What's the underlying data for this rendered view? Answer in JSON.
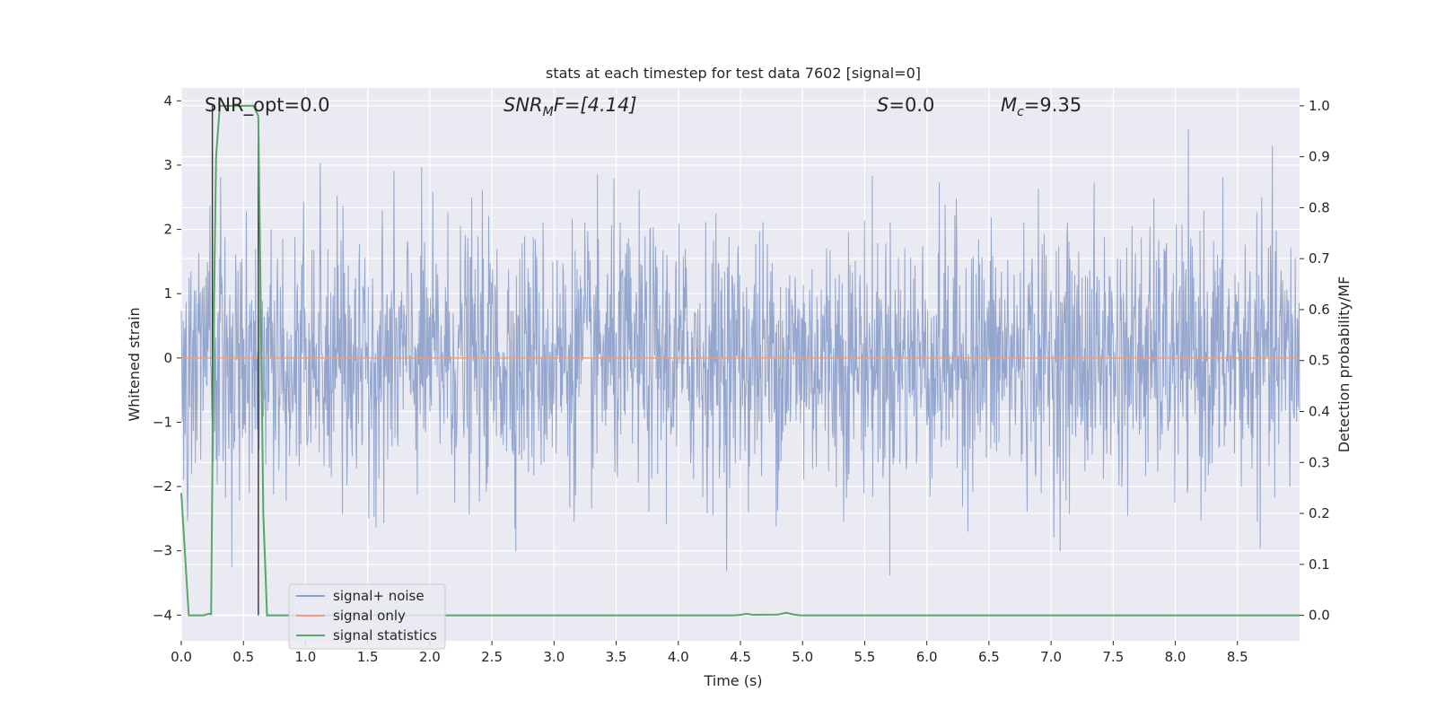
{
  "chart_data": {
    "type": "line",
    "title": "stats at each timestep for test data 7602 [signal=0]",
    "xlabel": "Time (s)",
    "ylabel_left": "Whitened strain",
    "ylabel_right": "Detection probability/MF",
    "xlim": [
      0.0,
      9.0
    ],
    "ylim_left": [
      -4.4,
      4.2
    ],
    "ylim_right": [
      -0.05,
      1.035
    ],
    "xticks": [
      "0.0",
      "0.5",
      "1.0",
      "1.5",
      "2.0",
      "2.5",
      "3.0",
      "3.5",
      "4.0",
      "4.5",
      "5.0",
      "5.5",
      "6.0",
      "6.5",
      "7.0",
      "7.5",
      "8.0",
      "8.5"
    ],
    "yticks_left": [
      "4",
      "3",
      "2",
      "1",
      "0",
      "−1",
      "−2",
      "−3",
      "−4"
    ],
    "yticks_right": [
      "1.0",
      "0.9",
      "0.8",
      "0.7",
      "0.6",
      "0.5",
      "0.4",
      "0.3",
      "0.2",
      "0.1",
      "0.0"
    ],
    "grid": true,
    "legend": {
      "location": "lower-left",
      "entries": [
        {
          "label": "signal+ noise",
          "color": "#8c9fca"
        },
        {
          "label": "signal only",
          "color": "#e6a07f"
        },
        {
          "label": "signal statistics",
          "color": "#55a868"
        }
      ]
    },
    "annotations": {
      "snr_opt": "SNR_opt=0.0",
      "snr_mf_sym": "SNR",
      "snr_mf_sub": "M",
      "snr_mf_rest": "F=[4.14]",
      "s_sym": "S",
      "s_rest": "=0.0",
      "mc_sym": "M",
      "mc_sub": "c",
      "mc_rest": "=9.35"
    },
    "series": [
      {
        "name": "signal+ noise",
        "axis": "left",
        "description_note": "dense whitened noise, std ~1, range approx -3.6 to 3.9",
        "amplitude_envelope": [
          -3.6,
          3.9
        ],
        "n_samples": 2304,
        "seed": 7602
      },
      {
        "name": "signal only",
        "axis": "left",
        "x": [
          0.0,
          9.0
        ],
        "y": [
          0.0,
          0.0
        ]
      },
      {
        "name": "signal statistics",
        "axis": "right",
        "x": [
          0.0,
          0.06,
          0.18,
          0.22,
          0.24,
          0.26,
          0.28,
          0.31,
          0.58,
          0.62,
          0.64,
          0.66,
          0.69,
          0.72,
          4.45,
          4.5,
          4.55,
          4.6,
          4.8,
          4.87,
          4.92,
          4.98,
          9.0
        ],
        "y": [
          0.24,
          0.0,
          0.0,
          0.003,
          0.002,
          0.55,
          0.9,
          1.0,
          1.0,
          0.98,
          0.6,
          0.2,
          0.0,
          0.0,
          0.0,
          0.001,
          0.003,
          0.001,
          0.0015,
          0.005,
          0.002,
          0.0,
          0.0
        ]
      }
    ],
    "markers": [
      {
        "x": 0.25,
        "y_top": 1.0,
        "y_bottom": 0.31,
        "axis": "right"
      },
      {
        "x": 0.62,
        "y_top": 0.97,
        "y_bottom": 0.0,
        "axis": "right"
      }
    ],
    "colors": {
      "plot_bg": "#eaeaf2",
      "grid": "#ffffff",
      "noise": "#8c9fca",
      "signal": "#e6a07f",
      "stats": "#55a868",
      "marker": "#333333"
    }
  }
}
